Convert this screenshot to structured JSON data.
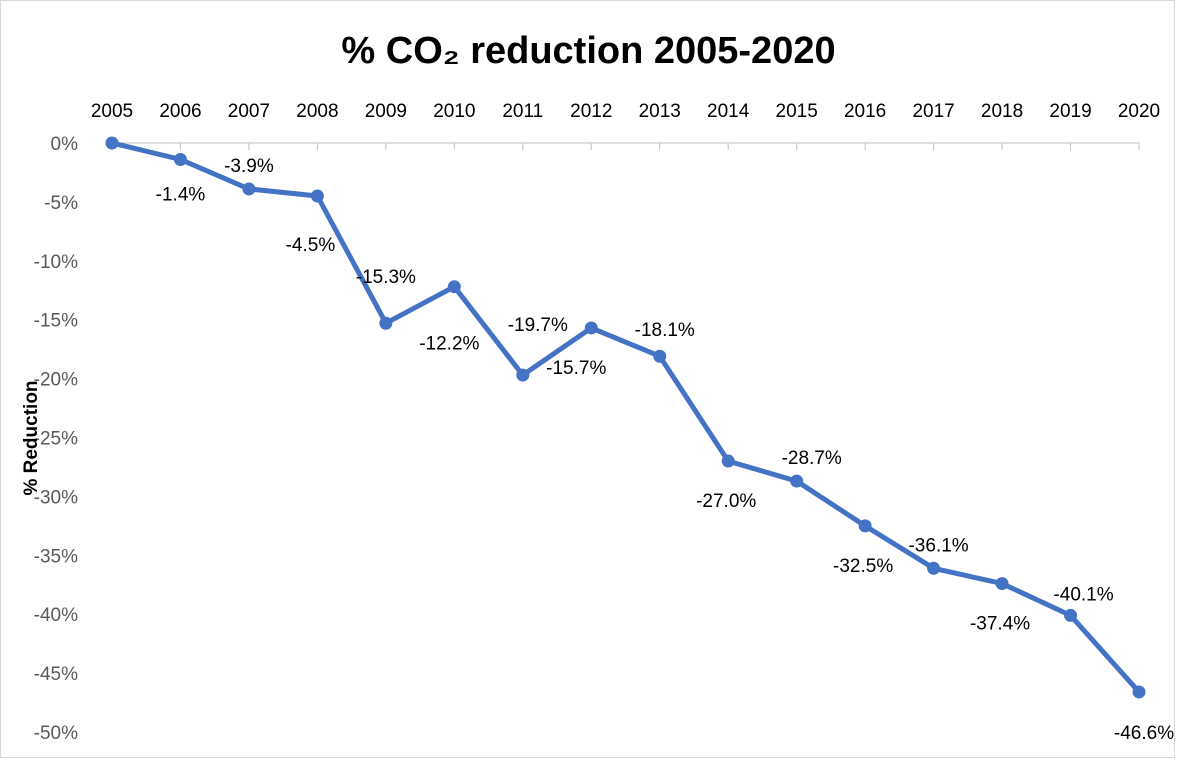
{
  "chart_data": {
    "type": "line",
    "title": "% CO₂ reduction 2005-2020",
    "xlabel": "",
    "ylabel": "% Reduction",
    "x": [
      "2005",
      "2006",
      "2007",
      "2008",
      "2009",
      "2010",
      "2011",
      "2012",
      "2013",
      "2014",
      "2015",
      "2016",
      "2017",
      "2018",
      "2019",
      "2020"
    ],
    "series": [
      {
        "values": [
          0,
          -1.4,
          -3.9,
          -4.5,
          -15.3,
          -12.2,
          -19.7,
          -15.7,
          -18.1,
          -27.0,
          -28.7,
          -32.5,
          -36.1,
          -37.4,
          -40.1,
          -46.6
        ],
        "data_labels": [
          "",
          "-1.4%",
          "-3.9%",
          "-4.5%",
          "-15.3%",
          "-12.2%",
          "-19.7%",
          "-15.7%",
          "-18.1%",
          "-27.0%",
          "-28.7%",
          "-32.5%",
          "-36.1%",
          "-37.4%",
          "-40.1%",
          "-46.6%"
        ],
        "color": "#4472C4"
      }
    ],
    "ylim": [
      -50,
      0
    ],
    "y_ticks": [
      0,
      -5,
      -10,
      -15,
      -20,
      -25,
      -30,
      -35,
      -40,
      -45,
      -50
    ],
    "y_tick_labels": [
      "0%",
      "-5%",
      "-10%",
      "-15%",
      "-20%",
      "-25%",
      "-30%",
      "-35%",
      "-40%",
      "-45%",
      "-50%"
    ],
    "x_axis_position": "top",
    "grid": false,
    "legend": "none"
  }
}
